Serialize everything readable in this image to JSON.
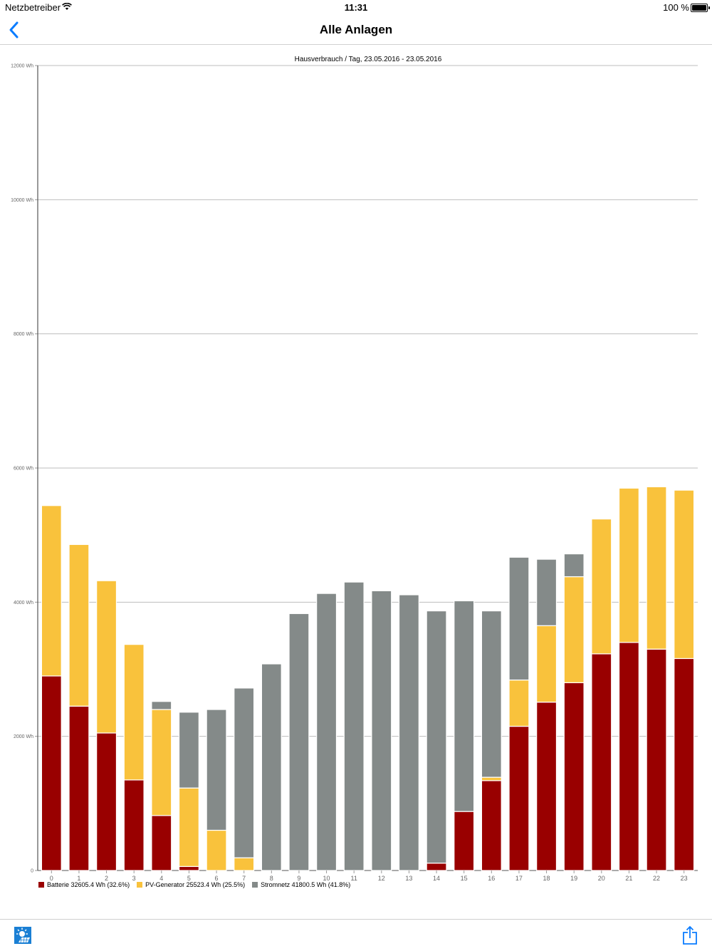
{
  "status": {
    "carrier": "Netzbetreiber",
    "time": "11:31",
    "battery": "100 %"
  },
  "nav": {
    "back_icon": "chevron-left-icon",
    "title": "Alle Anlagen"
  },
  "colors": {
    "accent": "#0a7cff",
    "batterie": "#990000",
    "pv": "#f9c23c",
    "netz": "#848a89",
    "grid": "#bdbdbd"
  },
  "chart_data": {
    "type": "bar",
    "stacked": true,
    "title": "Hausverbrauch / Tag, 23.05.2016 - 23.05.2016",
    "xlabel": "",
    "ylabel": "",
    "unit": "Wh",
    "ylim": [
      0,
      12000
    ],
    "yticks": [
      {
        "value": 0,
        "label": "0"
      },
      {
        "value": 2000,
        "label": "2000 Wh"
      },
      {
        "value": 4000,
        "label": "4000 Wh"
      },
      {
        "value": 6000,
        "label": "6000 Wh"
      },
      {
        "value": 8000,
        "label": "8000 Wh"
      },
      {
        "value": 10000,
        "label": "10000 Wh"
      },
      {
        "value": 12000,
        "label": "12000 Wh"
      }
    ],
    "grid": true,
    "legend_position": "bottom-left",
    "categories": [
      "0",
      "1",
      "2",
      "3",
      "4",
      "5",
      "6",
      "7",
      "8",
      "9",
      "10",
      "11",
      "12",
      "13",
      "14",
      "15",
      "16",
      "17",
      "18",
      "19",
      "20",
      "21",
      "22",
      "23"
    ],
    "series": [
      {
        "name": "Batterie",
        "legend": "Batterie 32605.4 Wh (32.6%)",
        "color": "#990000",
        "values": [
          2900,
          2450,
          2050,
          1350,
          820,
          60,
          0,
          0,
          0,
          0,
          0,
          0,
          0,
          0,
          110,
          880,
          1340,
          2150,
          2510,
          2800,
          3230,
          3400,
          3300,
          3160
        ]
      },
      {
        "name": "PV-Generator",
        "legend": "PV-Generator 25523.4 Wh (25.5%)",
        "color": "#f9c23c",
        "values": [
          2540,
          2410,
          2270,
          2020,
          1580,
          1170,
          600,
          190,
          0,
          0,
          0,
          0,
          0,
          0,
          0,
          0,
          50,
          690,
          1140,
          1580,
          2010,
          2300,
          2420,
          2510
        ]
      },
      {
        "name": "Stromnetz",
        "legend": "Stromnetz 41800.5 Wh (41.8%)",
        "color": "#848a89",
        "values": [
          0,
          0,
          0,
          0,
          120,
          1130,
          1800,
          2530,
          3080,
          3830,
          4130,
          4300,
          4170,
          4110,
          3760,
          3140,
          2480,
          1830,
          990,
          340,
          0,
          0,
          0,
          0
        ]
      }
    ]
  },
  "toolbar": {
    "app_icon": "solar-app-icon",
    "share_icon": "share-icon"
  }
}
